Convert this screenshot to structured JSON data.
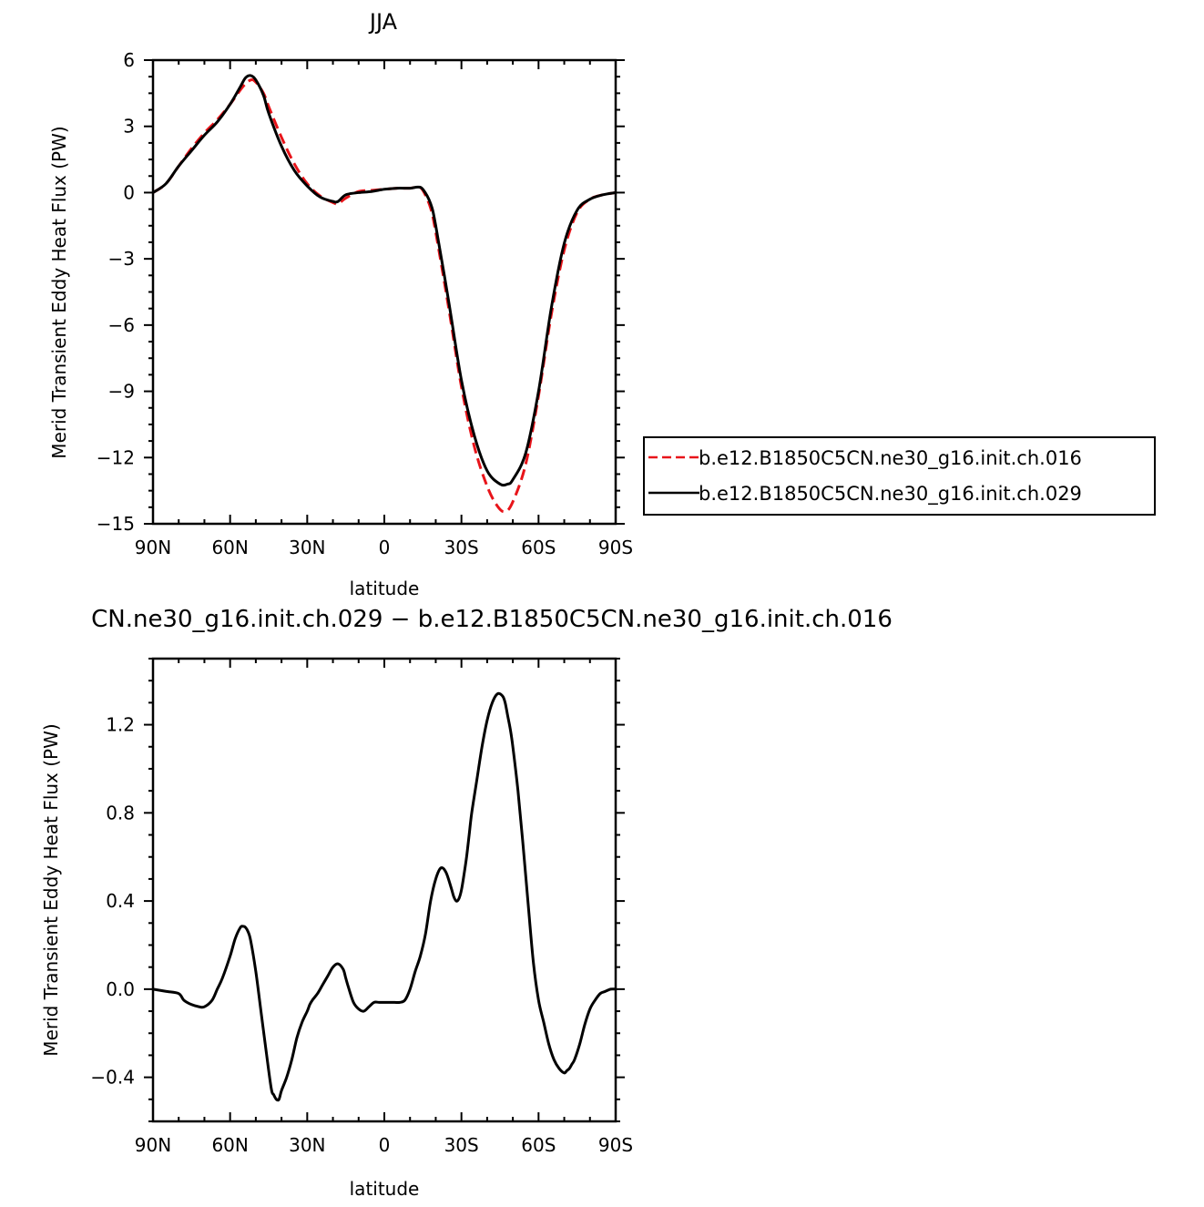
{
  "chart_data": [
    {
      "type": "line",
      "title": "JJA",
      "xlabel": "latitude",
      "ylabel": "Merid Transient Eddy Heat Flux (PW)",
      "xlim": [
        90,
        -90
      ],
      "ylim": [
        -15,
        6
      ],
      "xticks": [
        90,
        60,
        30,
        0,
        -30,
        -60,
        -90
      ],
      "xtick_labels": [
        "90N",
        "60N",
        "30N",
        "0",
        "30S",
        "60S",
        "90S"
      ],
      "yticks": [
        6,
        3,
        0,
        -3,
        -6,
        -9,
        -12,
        -15
      ],
      "ytick_labels": [
        "6",
        "3",
        "0",
        "−3",
        "−6",
        "−9",
        "−12",
        "−15"
      ],
      "legend_position": "right",
      "series": [
        {
          "name": "b.e12.B1850C5CN.ne30_g16.init.ch.016",
          "color": "#e8141a",
          "dash": "dashed",
          "x": [
            90,
            85,
            80,
            75,
            70,
            65,
            60,
            55,
            52,
            50,
            47,
            45,
            40,
            35,
            30,
            25,
            20,
            18,
            15,
            10,
            5,
            0,
            -5,
            -10,
            -13,
            -15,
            -18,
            -20,
            -25,
            -30,
            -35,
            -40,
            -44,
            -47,
            -50,
            -55,
            -60,
            -65,
            -70,
            -75,
            -80,
            -85,
            -90
          ],
          "y": [
            0,
            0.4,
            1.2,
            2.0,
            2.7,
            3.3,
            4.0,
            4.8,
            5.1,
            5.0,
            4.5,
            3.9,
            2.5,
            1.3,
            0.4,
            -0.15,
            -0.45,
            -0.5,
            -0.25,
            0.05,
            0.1,
            0.15,
            0.2,
            0.2,
            0.25,
            0.1,
            -0.7,
            -1.8,
            -5.2,
            -8.8,
            -11.5,
            -13.3,
            -14.2,
            -14.45,
            -14.0,
            -12.3,
            -9.2,
            -5.5,
            -2.6,
            -0.9,
            -0.3,
            -0.1,
            0
          ]
        },
        {
          "name": "b.e12.B1850C5CN.ne30_g16.init.ch.029",
          "color": "#000000",
          "dash": "solid",
          "x": [
            90,
            85,
            80,
            75,
            70,
            65,
            60,
            56,
            54,
            52,
            50,
            47,
            45,
            40,
            35,
            30,
            25,
            20,
            18,
            15,
            10,
            5,
            0,
            -5,
            -10,
            -13,
            -15,
            -18,
            -20,
            -25,
            -30,
            -35,
            -40,
            -45,
            -48,
            -50,
            -55,
            -60,
            -65,
            -70,
            -75,
            -80,
            -85,
            -90
          ],
          "y": [
            0,
            0.4,
            1.2,
            1.9,
            2.6,
            3.2,
            4.0,
            4.8,
            5.2,
            5.3,
            5.1,
            4.4,
            3.6,
            2.1,
            1.0,
            0.3,
            -0.2,
            -0.4,
            -0.4,
            -0.1,
            0.0,
            0.05,
            0.15,
            0.2,
            0.2,
            0.25,
            0.15,
            -0.5,
            -1.5,
            -4.9,
            -8.5,
            -11.0,
            -12.6,
            -13.2,
            -13.2,
            -13.0,
            -11.8,
            -9.0,
            -5.2,
            -2.3,
            -0.8,
            -0.3,
            -0.1,
            0
          ]
        }
      ]
    },
    {
      "type": "line",
      "title": "CN.ne30_g16.init.ch.029 − b.e12.B1850C5CN.ne30_g16.init.ch.016",
      "xlabel": "latitude",
      "ylabel": "Merid Transient Eddy Heat Flux (PW)",
      "xlim": [
        90,
        -90
      ],
      "ylim": [
        -0.6,
        1.5
      ],
      "xticks": [
        90,
        60,
        30,
        0,
        -30,
        -60,
        -90
      ],
      "xtick_labels": [
        "90N",
        "60N",
        "30N",
        "0",
        "30S",
        "60S",
        "90S"
      ],
      "yticks": [
        1.2,
        0.8,
        0.4,
        0.0,
        -0.4
      ],
      "ytick_labels": [
        "1.2",
        "0.8",
        "0.4",
        "0.0",
        "−0.4"
      ],
      "series": [
        {
          "color": "#000000",
          "dash": "solid",
          "x": [
            90,
            85,
            80,
            78,
            75,
            72,
            70,
            67,
            65,
            63,
            60,
            58,
            56,
            55,
            54,
            53,
            52,
            50,
            48,
            46,
            44,
            43,
            42,
            41,
            40,
            38,
            36,
            34,
            32,
            30,
            29,
            28,
            26,
            24,
            22,
            20,
            18,
            16,
            15,
            14,
            12,
            10,
            8,
            6,
            4,
            2,
            0,
            -2,
            -4,
            -6,
            -8,
            -10,
            -12,
            -14,
            -16,
            -18,
            -20,
            -22,
            -24,
            -26,
            -27,
            -28,
            -29,
            -30,
            -31,
            -32,
            -33,
            -34,
            -36,
            -38,
            -40,
            -42,
            -44,
            -46,
            -47,
            -48,
            -49,
            -50,
            -52,
            -54,
            -56,
            -58,
            -60,
            -62,
            -64,
            -66,
            -68,
            -70,
            -71,
            -72,
            -73,
            -74,
            -76,
            -78,
            -80,
            -82,
            -84,
            -86,
            -88,
            -90
          ],
          "y": [
            0.0,
            -0.01,
            -0.02,
            -0.05,
            -0.07,
            -0.08,
            -0.08,
            -0.05,
            0.0,
            0.05,
            0.15,
            0.23,
            0.28,
            0.285,
            0.28,
            0.26,
            0.22,
            0.08,
            -0.1,
            -0.28,
            -0.45,
            -0.48,
            -0.5,
            -0.5,
            -0.46,
            -0.4,
            -0.32,
            -0.22,
            -0.15,
            -0.1,
            -0.07,
            -0.05,
            -0.02,
            0.02,
            0.06,
            0.1,
            0.115,
            0.09,
            0.05,
            0.01,
            -0.06,
            -0.09,
            -0.1,
            -0.08,
            -0.06,
            -0.06,
            -0.06,
            -0.06,
            -0.06,
            -0.06,
            -0.05,
            0.0,
            0.08,
            0.15,
            0.25,
            0.4,
            0.5,
            0.55,
            0.53,
            0.46,
            0.42,
            0.4,
            0.41,
            0.45,
            0.52,
            0.6,
            0.7,
            0.8,
            0.95,
            1.1,
            1.22,
            1.3,
            1.34,
            1.33,
            1.3,
            1.24,
            1.18,
            1.1,
            0.9,
            0.65,
            0.38,
            0.12,
            -0.05,
            -0.15,
            -0.25,
            -0.32,
            -0.36,
            -0.38,
            -0.37,
            -0.36,
            -0.34,
            -0.32,
            -0.25,
            -0.16,
            -0.09,
            -0.05,
            -0.02,
            -0.01,
            0.0,
            0.0
          ]
        }
      ]
    }
  ]
}
